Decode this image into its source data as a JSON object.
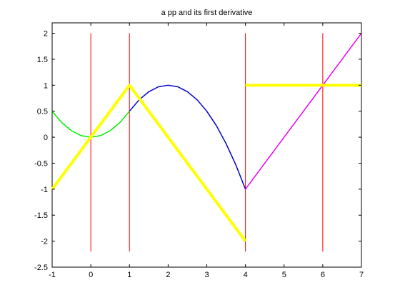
{
  "chart_data": {
    "type": "line",
    "title": "a pp and its first derivative",
    "xlabel": "",
    "ylabel": "",
    "xlim": [
      -1,
      7
    ],
    "ylim": [
      -2.5,
      2.2
    ],
    "xticks": [
      -1,
      0,
      1,
      2,
      3,
      4,
      5,
      6,
      7
    ],
    "yticks": [
      -2.5,
      -2,
      -1.5,
      -1,
      -0.5,
      0,
      0.5,
      1,
      1.5,
      2
    ],
    "ytick_labels": [
      "-2.5",
      "-2",
      "-1.5",
      "-1",
      "-0.5",
      "0",
      "0.5",
      "1",
      "1.5",
      "2"
    ],
    "xtick_labels": [
      "-1",
      "0",
      "1",
      "2",
      "3",
      "4",
      "5",
      "6",
      "7"
    ],
    "grid": false,
    "breakpoint_lines": {
      "color": "#ff0000",
      "x": [
        0,
        1,
        4,
        6
      ],
      "y_range": [
        -2.2,
        2.0
      ]
    },
    "series": [
      {
        "color": "#00ee00",
        "width": 1.5,
        "points": [
          [
            -1,
            0.5
          ],
          [
            -0.75,
            0.28
          ],
          [
            -0.5,
            0.125
          ],
          [
            -0.25,
            0.03
          ],
          [
            0,
            0
          ],
          [
            0.25,
            0.03
          ],
          [
            0.5,
            0.125
          ],
          [
            0.75,
            0.28
          ],
          [
            1,
            0.5
          ]
        ]
      },
      {
        "color": "#0000cc",
        "width": 1.5,
        "points": [
          [
            1,
            0.5
          ],
          [
            1.25,
            0.72
          ],
          [
            1.5,
            0.875
          ],
          [
            1.75,
            0.97
          ],
          [
            2,
            1.0
          ],
          [
            2.25,
            0.97
          ],
          [
            2.5,
            0.875
          ],
          [
            2.75,
            0.72
          ],
          [
            3,
            0.5
          ],
          [
            3.25,
            0.22
          ],
          [
            3.5,
            -0.125
          ],
          [
            3.75,
            -0.53
          ],
          [
            4,
            -1.0
          ]
        ]
      },
      {
        "color": "#ee00ee",
        "width": 1.5,
        "points": [
          [
            4,
            -1.0
          ],
          [
            5,
            0.0
          ],
          [
            6,
            1.0
          ],
          [
            7,
            2.0
          ]
        ]
      },
      {
        "color": "#ffff00",
        "width": 4,
        "points": [
          [
            -1,
            -1
          ],
          [
            1,
            1
          ],
          [
            4,
            -2
          ]
        ]
      },
      {
        "color": "#ffff00",
        "width": 4,
        "points": [
          [
            4,
            1
          ],
          [
            7,
            1
          ]
        ]
      }
    ]
  }
}
